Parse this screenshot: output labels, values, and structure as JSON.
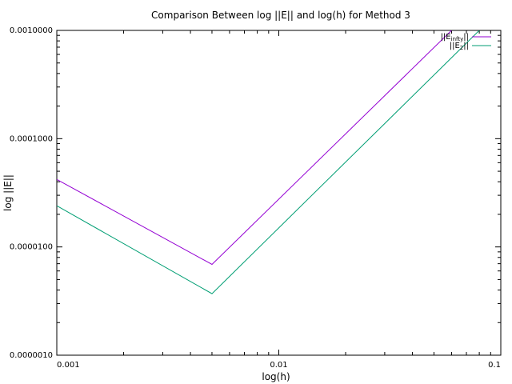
{
  "chart_data": {
    "type": "line",
    "title": "Comparison Between log ||E|| and log(h) for Method 3",
    "xlabel": "log(h)",
    "ylabel": "log ||E||",
    "x_scale": "log",
    "y_scale": "log",
    "xlim": [
      0.001,
      0.1
    ],
    "ylim": [
      1e-06,
      0.001
    ],
    "x_ticks": [
      {
        "value": 0.001,
        "label": "0.001"
      },
      {
        "value": 0.01,
        "label": "0.01"
      },
      {
        "value": 0.1,
        "label": "0.1"
      }
    ],
    "y_ticks": [
      {
        "value": 1e-06,
        "label": "0.0000010"
      },
      {
        "value": 1e-05,
        "label": "0.0000100"
      },
      {
        "value": 0.0001,
        "label": "0.0001000"
      },
      {
        "value": 0.001,
        "label": "0.0010000"
      }
    ],
    "grid": false,
    "legend_position": "top-right",
    "series": [
      {
        "name": "||E_{infty}||",
        "legend_main": "||E",
        "legend_sub": "infty",
        "legend_tail": "||",
        "color": "#9400d3",
        "points": [
          [
            0.001,
            4.2e-05
          ],
          [
            0.005,
            6.9e-06
          ],
          [
            0.06,
            0.001
          ]
        ]
      },
      {
        "name": "||E_2||",
        "legend_main": "||E",
        "legend_sub": "2",
        "legend_tail": "||",
        "color": "#009e73",
        "points": [
          [
            0.001,
            2.4e-05
          ],
          [
            0.005,
            3.7e-06
          ],
          [
            0.08,
            0.001
          ]
        ]
      }
    ]
  }
}
